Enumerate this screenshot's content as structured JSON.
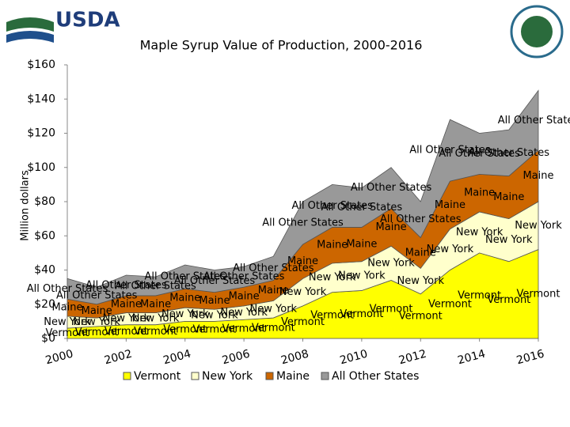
{
  "logo_text": "USDA",
  "chart_data": {
    "type": "stacked_area",
    "title": "Maple Syrup Value of  Production, 2000-2016",
    "ylabel": "Million dollars",
    "x": [
      2000,
      2001,
      2002,
      2003,
      2004,
      2005,
      2006,
      2007,
      2008,
      2009,
      2010,
      2011,
      2012,
      2013,
      2014,
      2015,
      2016
    ],
    "xlim": [
      2000,
      2016
    ],
    "xticks": [
      2000,
      2002,
      2004,
      2006,
      2008,
      2010,
      2012,
      2014,
      2016
    ],
    "ylim": [
      0,
      160
    ],
    "yticks": [
      {
        "value": 0,
        "label": "$0"
      },
      {
        "value": 20,
        "label": "$20"
      },
      {
        "value": 40,
        "label": "$40"
      },
      {
        "value": 60,
        "label": "$60"
      },
      {
        "value": 80,
        "label": "$80"
      },
      {
        "value": 100,
        "label": "$100"
      },
      {
        "value": 120,
        "label": "$120"
      },
      {
        "value": 140,
        "label": "$140"
      },
      {
        "value": 160,
        "label": "$160"
      }
    ],
    "legend": "bottom",
    "series": [
      {
        "name": "Vermont",
        "color": "#ffff00",
        "values": [
          6,
          7,
          8,
          8,
          10,
          10,
          11,
          12,
          19,
          27,
          28,
          34,
          26,
          40,
          50,
          45,
          52
        ]
      },
      {
        "name": "New York",
        "color": "#ffffcc",
        "values": [
          7,
          5,
          7,
          7,
          8,
          7,
          8,
          10,
          16,
          17,
          17,
          20,
          15,
          24,
          24,
          25,
          28
        ]
      },
      {
        "name": "Maine",
        "color": "#cc6600",
        "values": [
          10,
          8,
          10,
          10,
          11,
          10,
          11,
          12,
          20,
          21,
          20,
          22,
          18,
          28,
          22,
          25,
          30
        ]
      },
      {
        "name": "All Other States",
        "color": "#999999",
        "values": [
          12,
          10,
          12,
          11,
          14,
          13,
          12,
          14,
          25,
          25,
          23,
          24,
          21,
          36,
          24,
          27,
          35
        ]
      }
    ]
  }
}
